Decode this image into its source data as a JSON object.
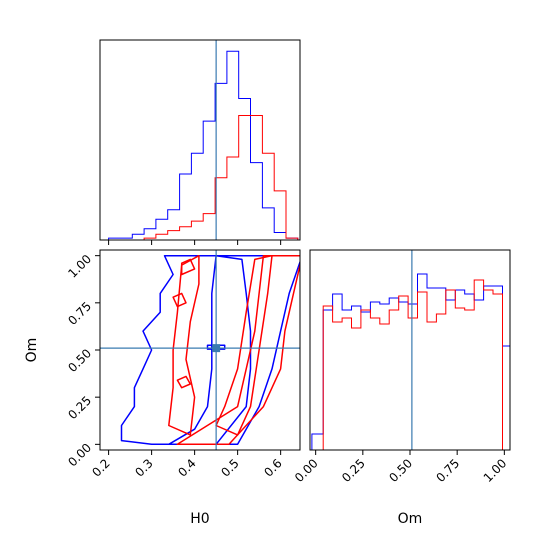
{
  "chart_data": {
    "type": "corner",
    "params": [
      "H0",
      "Om"
    ],
    "truth": {
      "H0": 0.45,
      "Om": 0.51
    },
    "colors": {
      "blue": "#0000ff",
      "red": "#ff0000",
      "truth": "#3a7bb0"
    },
    "axes": {
      "H0": {
        "xlabel": "H0",
        "range": [
          0.18,
          0.645
        ],
        "ticks": [
          "0.2",
          "0.3",
          "0.4",
          "0.5",
          "0.6"
        ]
      },
      "Om": {
        "ylabel": "Om",
        "xlabel": "Om",
        "range": [
          -0.03,
          1.03
        ],
        "ticks": [
          "0.00",
          "0.25",
          "0.50",
          "0.75",
          "1.00"
        ]
      }
    },
    "marginal_H0": {
      "bin_edges": [
        0.2,
        0.2275,
        0.255,
        0.2825,
        0.31,
        0.3375,
        0.365,
        0.3925,
        0.42,
        0.4475,
        0.475,
        0.5025,
        0.53,
        0.5575,
        0.585,
        0.6125,
        0.64
      ],
      "series": [
        {
          "color": "blue",
          "counts": [
            0.01,
            0.01,
            0.03,
            0.06,
            0.11,
            0.16,
            0.35,
            0.46,
            0.63,
            0.83,
            1.0,
            0.75,
            0.41,
            0.17,
            0.04,
            0.01
          ]
        },
        {
          "color": "red",
          "counts": [
            0.0,
            0.0,
            0.0,
            0.01,
            0.03,
            0.05,
            0.07,
            0.1,
            0.14,
            0.33,
            0.44,
            0.66,
            0.66,
            0.46,
            0.26,
            0.01
          ]
        }
      ]
    },
    "marginal_Om": {
      "bin_edges": [
        -0.02,
        0.04,
        0.09,
        0.14,
        0.19,
        0.24,
        0.29,
        0.34,
        0.39,
        0.44,
        0.49,
        0.54,
        0.59,
        0.64,
        0.69,
        0.74,
        0.79,
        0.84,
        0.89,
        0.94,
        0.99,
        1.03
      ],
      "series": [
        {
          "color": "blue",
          "counts": [
            0.08,
            0.7,
            0.78,
            0.7,
            0.72,
            0.69,
            0.74,
            0.73,
            0.76,
            0.74,
            0.73,
            0.88,
            0.81,
            0.81,
            0.75,
            0.8,
            0.78,
            0.75,
            0.82,
            0.82,
            0.52
          ]
        },
        {
          "color": "red",
          "counts": [
            0.0,
            0.72,
            0.64,
            0.66,
            0.61,
            0.7,
            0.66,
            0.63,
            0.7,
            0.77,
            0.66,
            0.79,
            0.64,
            0.68,
            0.8,
            0.71,
            0.7,
            0.85,
            0.8,
            0.78,
            0.0
          ]
        }
      ]
    },
    "contours": [
      {
        "color": "blue",
        "points": [
          [
            0.34,
            0.0
          ],
          [
            0.45,
            0.0
          ],
          [
            0.52,
            0.2
          ],
          [
            0.53,
            0.4
          ],
          [
            0.53,
            0.6
          ],
          [
            0.52,
            0.8
          ],
          [
            0.51,
            0.98
          ],
          [
            0.45,
            1.0
          ],
          [
            0.44,
            0.8
          ],
          [
            0.44,
            0.6
          ],
          [
            0.44,
            0.4
          ],
          [
            0.43,
            0.2
          ],
          [
            0.4,
            0.08
          ]
        ]
      },
      {
        "color": "blue",
        "points": [
          [
            0.23,
            0.02
          ],
          [
            0.3,
            0.0
          ],
          [
            0.5,
            0.0
          ],
          [
            0.55,
            0.2
          ],
          [
            0.58,
            0.4
          ],
          [
            0.6,
            0.6
          ],
          [
            0.62,
            0.8
          ],
          [
            0.65,
            1.0
          ],
          [
            0.33,
            1.0
          ],
          [
            0.35,
            0.9
          ],
          [
            0.32,
            0.8
          ],
          [
            0.32,
            0.7
          ],
          [
            0.28,
            0.6
          ],
          [
            0.3,
            0.5
          ],
          [
            0.28,
            0.4
          ],
          [
            0.26,
            0.3
          ],
          [
            0.26,
            0.2
          ],
          [
            0.23,
            0.1
          ]
        ]
      },
      {
        "color": "red",
        "points": [
          [
            0.36,
            0.0
          ],
          [
            0.48,
            0.0
          ],
          [
            0.56,
            0.2
          ],
          [
            0.6,
            0.4
          ],
          [
            0.61,
            0.6
          ],
          [
            0.63,
            0.8
          ],
          [
            0.65,
            1.0
          ],
          [
            0.56,
            1.0
          ],
          [
            0.55,
            0.8
          ],
          [
            0.54,
            0.6
          ],
          [
            0.52,
            0.4
          ],
          [
            0.5,
            0.2
          ]
        ]
      },
      {
        "color": "red",
        "points": [
          [
            0.45,
            0.1
          ],
          [
            0.5,
            0.05
          ],
          [
            0.53,
            0.2
          ],
          [
            0.55,
            0.5
          ],
          [
            0.57,
            0.8
          ],
          [
            0.58,
            1.0
          ],
          [
            0.54,
            0.98
          ],
          [
            0.52,
            0.7
          ],
          [
            0.5,
            0.4
          ],
          [
            0.47,
            0.2
          ]
        ]
      },
      {
        "color": "red",
        "points": [
          [
            0.34,
            0.1
          ],
          [
            0.39,
            0.05
          ],
          [
            0.4,
            0.25
          ],
          [
            0.38,
            0.45
          ],
          [
            0.39,
            0.65
          ],
          [
            0.41,
            0.85
          ],
          [
            0.41,
            1.0
          ],
          [
            0.37,
            0.95
          ],
          [
            0.36,
            0.7
          ],
          [
            0.35,
            0.5
          ],
          [
            0.35,
            0.3
          ]
        ]
      },
      {
        "color": "red",
        "points": [
          [
            0.37,
            0.9
          ],
          [
            0.4,
            0.93
          ],
          [
            0.39,
            0.98
          ],
          [
            0.37,
            0.96
          ]
        ]
      },
      {
        "color": "red",
        "points": [
          [
            0.36,
            0.73
          ],
          [
            0.38,
            0.75
          ],
          [
            0.37,
            0.8
          ],
          [
            0.35,
            0.78
          ]
        ]
      },
      {
        "color": "red",
        "points": [
          [
            0.37,
            0.3
          ],
          [
            0.39,
            0.32
          ],
          [
            0.38,
            0.36
          ],
          [
            0.36,
            0.34
          ]
        ]
      },
      {
        "color": "blue",
        "points": [
          [
            0.43,
            0.505
          ],
          [
            0.47,
            0.505
          ],
          [
            0.47,
            0.525
          ],
          [
            0.43,
            0.525
          ]
        ]
      }
    ]
  }
}
